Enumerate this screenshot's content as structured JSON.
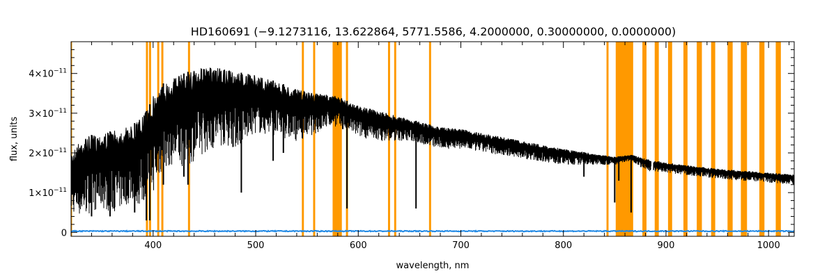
{
  "chart_data": {
    "type": "line",
    "title": "HD160691   (−9.1273116, 13.622864, 5771.5586, 4.2000000, 0.30000000, 0.0000000)",
    "xlabel": "wavelength, nm",
    "ylabel": "flux, units",
    "xlim": [
      320,
      1025
    ],
    "ylim": [
      -1e-12,
      4.8e-11
    ],
    "grid": false,
    "x_ticks": [
      {
        "value": 400,
        "label": "400"
      },
      {
        "value": 500,
        "label": "500"
      },
      {
        "value": 600,
        "label": "600"
      },
      {
        "value": 700,
        "label": "700"
      },
      {
        "value": 800,
        "label": "800"
      },
      {
        "value": 900,
        "label": "900"
      },
      {
        "value": 1000,
        "label": "1000"
      }
    ],
    "y_ticks": [
      {
        "value": 0,
        "label": "0",
        "mantissa": "0",
        "exponent": ""
      },
      {
        "value": 1e-11,
        "label": "1×10⁻¹¹",
        "mantissa": "1×10",
        "exponent": "−11"
      },
      {
        "value": 2e-11,
        "label": "2×10⁻¹¹",
        "mantissa": "2×10",
        "exponent": "−11"
      },
      {
        "value": 3e-11,
        "label": "3×10⁻¹¹",
        "mantissa": "3×10",
        "exponent": "−11"
      },
      {
        "value": 4e-11,
        "label": "4×10⁻¹¹",
        "mantissa": "4×10",
        "exponent": "−11"
      }
    ],
    "colors": {
      "spectrum": "#000000",
      "error": "#1e88e5",
      "masked": "#ff9900"
    },
    "spectrum_envelope": {
      "x": [
        320,
        330,
        340,
        350,
        360,
        370,
        380,
        390,
        395,
        400,
        405,
        410,
        420,
        430,
        440,
        450,
        460,
        470,
        480,
        490,
        500,
        520,
        540,
        560,
        575,
        582,
        590,
        600,
        620,
        650,
        680,
        700,
        750,
        800,
        850,
        867,
        880,
        900,
        950,
        1000,
        1025
      ],
      "upper": [
        2e-11,
        2.35e-11,
        2.45e-11,
        2.5e-11,
        2.55e-11,
        2.6e-11,
        2.7e-11,
        2.95e-11,
        3.1e-11,
        3.45e-11,
        3.6e-11,
        3.75e-11,
        3.9e-11,
        4e-11,
        4.1e-11,
        4.15e-11,
        4.15e-11,
        4.1e-11,
        4.05e-11,
        4e-11,
        3.95e-11,
        3.8e-11,
        3.6e-11,
        3.5e-11,
        3.45e-11,
        3.4e-11,
        3.3e-11,
        3.2e-11,
        3.05e-11,
        2.85e-11,
        2.65e-11,
        2.6e-11,
        2.35e-11,
        2.1e-11,
        1.9e-11,
        1.95e-11,
        1.85e-11,
        1.75e-11,
        1.6e-11,
        1.5e-11,
        1.45e-11
      ],
      "lower": [
        5e-12,
        4e-12,
        5e-12,
        6e-12,
        5e-12,
        6e-12,
        8e-12,
        6e-12,
        1.2e-11,
        1e-11,
        1.3e-11,
        1.6e-11,
        1.7e-11,
        1.6e-11,
        1.8e-11,
        2e-11,
        2.1e-11,
        2.2e-11,
        2.1e-11,
        2.3e-11,
        2.5e-11,
        2.4e-11,
        2.3e-11,
        2.5e-11,
        2.7e-11,
        2.6e-11,
        2.55e-11,
        2.4e-11,
        2.3e-11,
        2.3e-11,
        2.1e-11,
        2.1e-11,
        1.9e-11,
        1.7e-11,
        1.7e-11,
        1.8e-11,
        1.55e-11,
        1.5e-11,
        1.35e-11,
        1.25e-11,
        1.2e-11
      ]
    },
    "absorption_lines": [
      {
        "x": 340,
        "depth": 4e-12
      },
      {
        "x": 358,
        "depth": 4e-12
      },
      {
        "x": 382,
        "depth": 5e-12
      },
      {
        "x": 393.4,
        "depth": 3e-12
      },
      {
        "x": 396.8,
        "depth": 3e-12
      },
      {
        "x": 410,
        "depth": 1.2e-11
      },
      {
        "x": 430,
        "depth": 1.4e-11
      },
      {
        "x": 434,
        "depth": 1.2e-11
      },
      {
        "x": 486,
        "depth": 1e-11
      },
      {
        "x": 517,
        "depth": 1.8e-11
      },
      {
        "x": 527,
        "depth": 2e-11
      },
      {
        "x": 589,
        "depth": 6e-12
      },
      {
        "x": 656.3,
        "depth": 6e-12
      },
      {
        "x": 820,
        "depth": 1.4e-11
      },
      {
        "x": 850,
        "depth": 7.5e-12
      },
      {
        "x": 854,
        "depth": 1.3e-11
      },
      {
        "x": 866,
        "depth": 5e-12
      }
    ],
    "error_level": 3e-13,
    "masked_bands": [
      [
        319,
        321
      ],
      [
        393,
        395
      ],
      [
        396,
        398
      ],
      [
        404,
        406
      ],
      [
        408,
        410
      ],
      [
        434,
        436
      ],
      [
        545,
        547
      ],
      [
        556,
        558
      ],
      [
        575,
        584
      ],
      [
        588,
        590
      ],
      [
        629,
        631
      ],
      [
        635,
        637
      ],
      [
        669,
        671
      ],
      [
        842,
        844
      ],
      [
        851,
        868
      ],
      [
        877,
        881
      ],
      [
        889,
        893
      ],
      [
        902,
        906
      ],
      [
        917,
        921
      ],
      [
        930,
        935
      ],
      [
        944,
        948
      ],
      [
        960,
        965
      ],
      [
        973,
        979
      ],
      [
        991,
        996
      ],
      [
        1007,
        1012
      ]
    ]
  }
}
